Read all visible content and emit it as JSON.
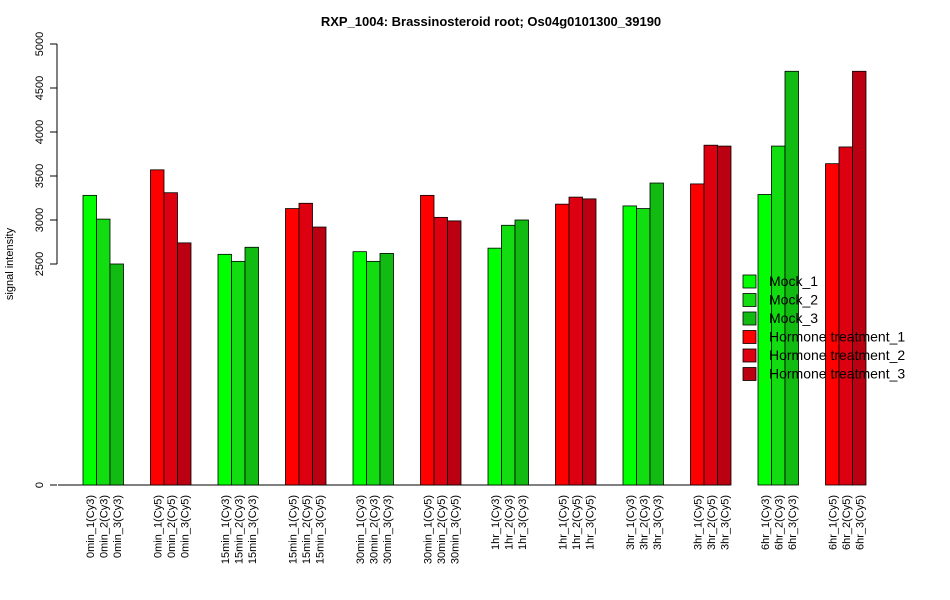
{
  "chart_data": {
    "type": "bar",
    "title": "RXP_1004: Brassinosteroid root; Os04g0101300_39190",
    "ylabel": "signal intensity",
    "xlabel": "",
    "ylim": [
      0,
      5000
    ],
    "yaxis_break_between": [
      0,
      2500
    ],
    "yticks": [
      0,
      2500,
      3000,
      3500,
      4000,
      4500,
      5000
    ],
    "ytick_labels": [
      "0",
      "2500",
      "3000",
      "3500",
      "4000",
      "4500",
      "5000"
    ],
    "grid": false,
    "legend_position": "right",
    "series_colors": {
      "Mock_1": "#00ff00",
      "Mock_2": "#11dd11",
      "Mock_3": "#11bb11",
      "Hormone treatment_1": "#ff0000",
      "Hormone treatment_2": "#dd0011",
      "Hormone treatment_3": "#bb0011"
    },
    "legend": [
      "Mock_1",
      "Mock_2",
      "Mock_3",
      "Hormone treatment_1",
      "Hormone treatment_2",
      "Hormone treatment_3"
    ],
    "groups": [
      {
        "bars": [
          {
            "label": "0min_1(Cy3)",
            "value": 3280,
            "series": "Mock_1"
          },
          {
            "label": "0min_2(Cy3)",
            "value": 3010,
            "series": "Mock_2"
          },
          {
            "label": "0min_3(Cy3)",
            "value": 2500,
            "series": "Mock_3"
          }
        ]
      },
      {
        "bars": [
          {
            "label": "0min_1(Cy5)",
            "value": 3570,
            "series": "Hormone treatment_1"
          },
          {
            "label": "0min_2(Cy5)",
            "value": 3310,
            "series": "Hormone treatment_2"
          },
          {
            "label": "0min_3(Cy5)",
            "value": 2740,
            "series": "Hormone treatment_3"
          }
        ]
      },
      {
        "bars": [
          {
            "label": "15min_1(Cy3)",
            "value": 2610,
            "series": "Mock_1"
          },
          {
            "label": "15min_2(Cy3)",
            "value": 2530,
            "series": "Mock_2"
          },
          {
            "label": "15min_3(Cy3)",
            "value": 2690,
            "series": "Mock_3"
          }
        ]
      },
      {
        "bars": [
          {
            "label": "15min_1(Cy5)",
            "value": 3130,
            "series": "Hormone treatment_1"
          },
          {
            "label": "15min_2(Cy5)",
            "value": 3190,
            "series": "Hormone treatment_2"
          },
          {
            "label": "15min_3(Cy5)",
            "value": 2920,
            "series": "Hormone treatment_3"
          }
        ]
      },
      {
        "bars": [
          {
            "label": "30min_1(Cy3)",
            "value": 2640,
            "series": "Mock_1"
          },
          {
            "label": "30min_2(Cy3)",
            "value": 2530,
            "series": "Mock_2"
          },
          {
            "label": "30min_3(Cy3)",
            "value": 2620,
            "series": "Mock_3"
          }
        ]
      },
      {
        "bars": [
          {
            "label": "30min_1(Cy5)",
            "value": 3280,
            "series": "Hormone treatment_1"
          },
          {
            "label": "30min_2(Cy5)",
            "value": 3030,
            "series": "Hormone treatment_2"
          },
          {
            "label": "30min_3(Cy5)",
            "value": 2990,
            "series": "Hormone treatment_3"
          }
        ]
      },
      {
        "bars": [
          {
            "label": "1hr_1(Cy3)",
            "value": 2680,
            "series": "Mock_1"
          },
          {
            "label": "1hr_2(Cy3)",
            "value": 2940,
            "series": "Mock_2"
          },
          {
            "label": "1hr_3(Cy3)",
            "value": 3000,
            "series": "Mock_3"
          }
        ]
      },
      {
        "bars": [
          {
            "label": "1hr_1(Cy5)",
            "value": 3180,
            "series": "Hormone treatment_1"
          },
          {
            "label": "1hr_2(Cy5)",
            "value": 3260,
            "series": "Hormone treatment_2"
          },
          {
            "label": "1hr_3(Cy5)",
            "value": 3240,
            "series": "Hormone treatment_3"
          }
        ]
      },
      {
        "bars": [
          {
            "label": "3hr_1(Cy3)",
            "value": 3160,
            "series": "Mock_1"
          },
          {
            "label": "3hr_2(Cy3)",
            "value": 3130,
            "series": "Mock_2"
          },
          {
            "label": "3hr_3(Cy3)",
            "value": 3420,
            "series": "Mock_3"
          }
        ]
      },
      {
        "bars": [
          {
            "label": "3hr_1(Cy5)",
            "value": 3410,
            "series": "Hormone treatment_1"
          },
          {
            "label": "3hr_2(Cy5)",
            "value": 3850,
            "series": "Hormone treatment_2"
          },
          {
            "label": "3hr_3(Cy5)",
            "value": 3840,
            "series": "Hormone treatment_3"
          }
        ]
      },
      {
        "bars": [
          {
            "label": "6hr_1(Cy3)",
            "value": 3290,
            "series": "Mock_1"
          },
          {
            "label": "6hr_2(Cy3)",
            "value": 3840,
            "series": "Mock_2"
          },
          {
            "label": "6hr_3(Cy3)",
            "value": 4690,
            "series": "Mock_3"
          }
        ]
      },
      {
        "bars": [
          {
            "label": "6hr_1(Cy5)",
            "value": 3640,
            "series": "Hormone treatment_1"
          },
          {
            "label": "6hr_2(Cy5)",
            "value": 3830,
            "series": "Hormone treatment_2"
          },
          {
            "label": "6hr_3(Cy5)",
            "value": 4690,
            "series": "Hormone treatment_3"
          }
        ]
      }
    ]
  }
}
